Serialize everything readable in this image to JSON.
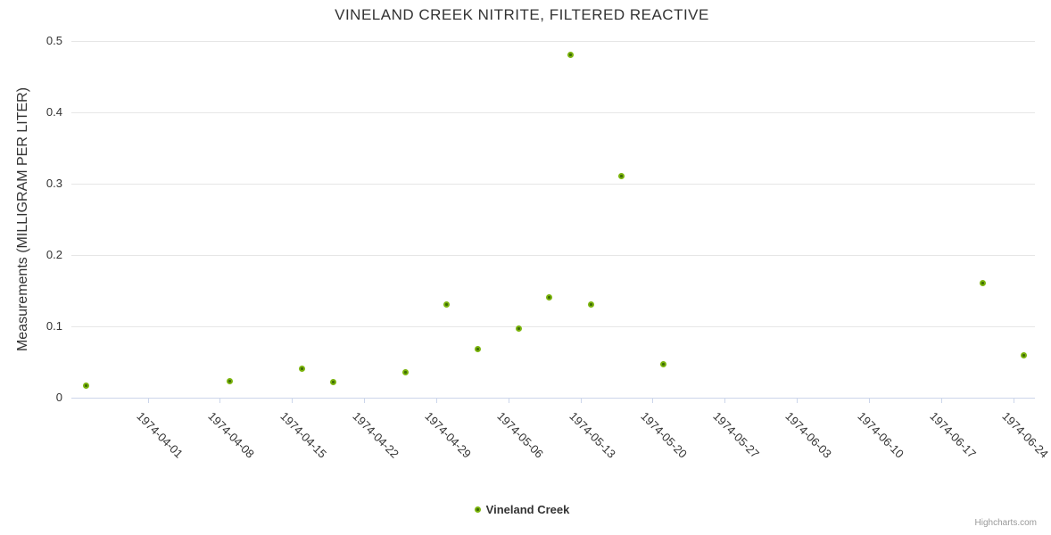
{
  "chart_data": {
    "type": "scatter",
    "title": "VINELAND CREEK NITRITE, FILTERED REACTIVE",
    "ylabel": "Measurements (MILLIGRAM PER LITER)",
    "xlabel": "",
    "ylim": [
      0,
      0.5
    ],
    "grid": "horizontal-only",
    "legend_position": "bottom-center",
    "yticks": [
      {
        "value": 0,
        "label": "0"
      },
      {
        "value": 0.1,
        "label": "0.1"
      },
      {
        "value": 0.2,
        "label": "0.2"
      },
      {
        "value": 0.3,
        "label": "0.3"
      },
      {
        "value": 0.4,
        "label": "0.4"
      },
      {
        "value": 0.5,
        "label": "0.5"
      }
    ],
    "xticks": [
      {
        "date": "1974-04-01",
        "label": "1974-04-01"
      },
      {
        "date": "1974-04-08",
        "label": "1974-04-08"
      },
      {
        "date": "1974-04-15",
        "label": "1974-04-15"
      },
      {
        "date": "1974-04-22",
        "label": "1974-04-22"
      },
      {
        "date": "1974-04-29",
        "label": "1974-04-29"
      },
      {
        "date": "1974-05-06",
        "label": "1974-05-06"
      },
      {
        "date": "1974-05-13",
        "label": "1974-05-13"
      },
      {
        "date": "1974-05-20",
        "label": "1974-05-20"
      },
      {
        "date": "1974-05-27",
        "label": "1974-05-27"
      },
      {
        "date": "1974-06-03",
        "label": "1974-06-03"
      },
      {
        "date": "1974-06-10",
        "label": "1974-06-10"
      },
      {
        "date": "1974-06-17",
        "label": "1974-06-17"
      },
      {
        "date": "1974-06-24",
        "label": "1974-06-24"
      }
    ],
    "series": [
      {
        "name": "Vineland Creek",
        "marker_color": "#7bb40d",
        "marker_center_color": "#3f6d04",
        "points": [
          {
            "date": "1974-03-26",
            "value": 0.016
          },
          {
            "date": "1974-04-09",
            "value": 0.023
          },
          {
            "date": "1974-04-16",
            "value": 0.04
          },
          {
            "date": "1974-04-19",
            "value": 0.022
          },
          {
            "date": "1974-04-26",
            "value": 0.035
          },
          {
            "date": "1974-04-30",
            "value": 0.13
          },
          {
            "date": "1974-05-03",
            "value": 0.068
          },
          {
            "date": "1974-05-07",
            "value": 0.096
          },
          {
            "date": "1974-05-10",
            "value": 0.14
          },
          {
            "date": "1974-05-12",
            "value": 0.48
          },
          {
            "date": "1974-05-14",
            "value": 0.13
          },
          {
            "date": "1974-05-17",
            "value": 0.31
          },
          {
            "date": "1974-05-21",
            "value": 0.046
          },
          {
            "date": "1974-06-21",
            "value": 0.16
          },
          {
            "date": "1974-06-25",
            "value": 0.059
          }
        ]
      }
    ],
    "colors": {
      "grid_line": "#e6e6e6",
      "axis_line": "#ccd6eb",
      "tick_mark": "#ccd6eb",
      "axis_label": "#333333",
      "title_text": "#333333",
      "credits_text": "#999999"
    },
    "credits": "Highcharts.com"
  }
}
